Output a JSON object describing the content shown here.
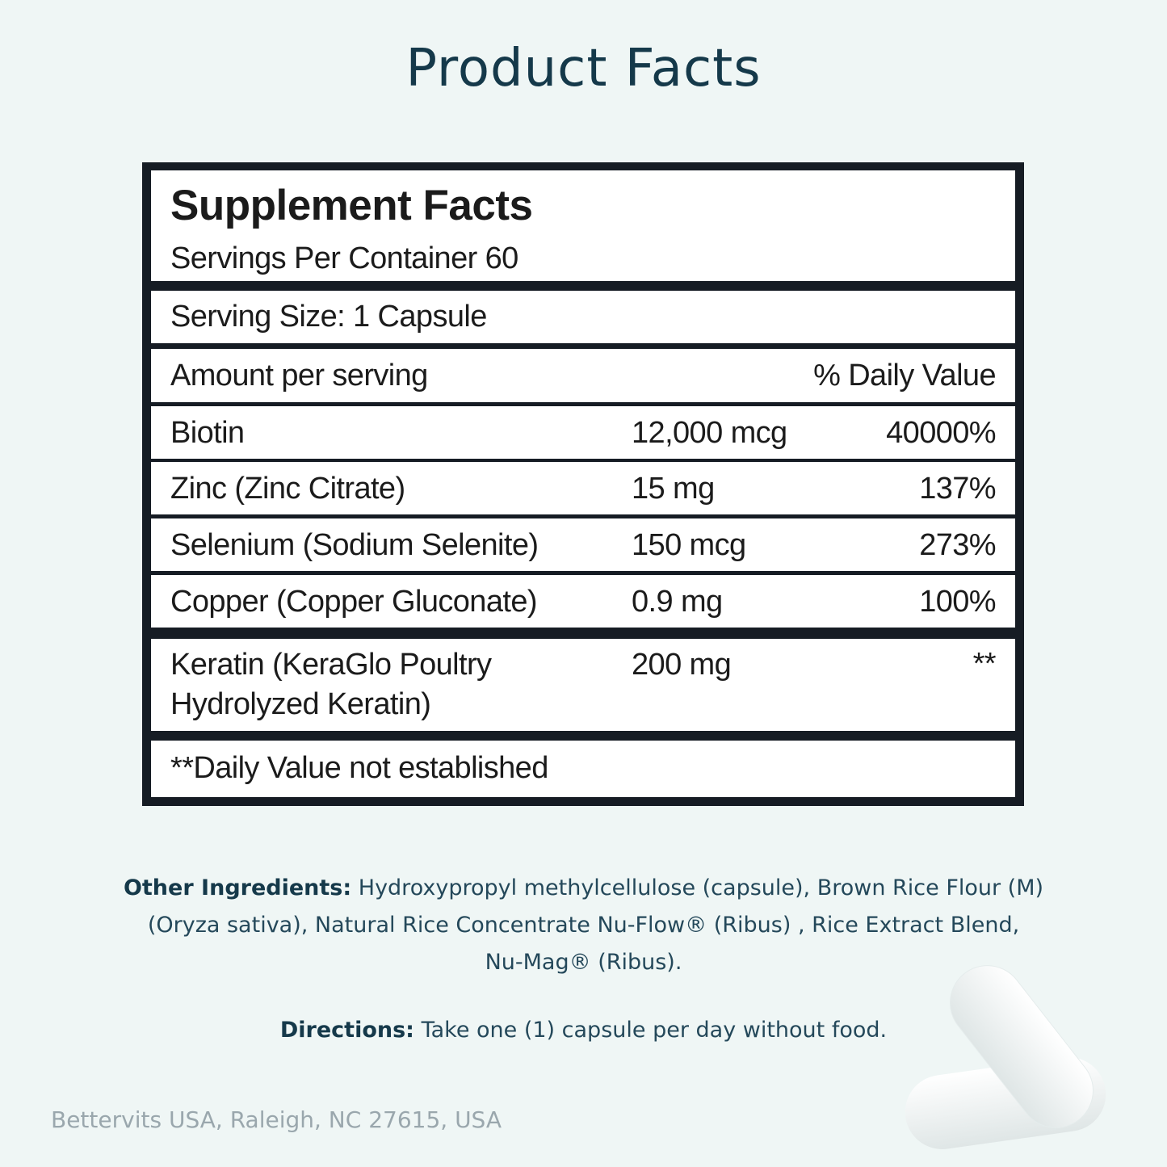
{
  "title": "Product Facts",
  "facts": {
    "heading": "Supplement Facts",
    "servings": "Servings Per Container 60",
    "serving_size": "Serving Size: 1 Capsule",
    "header": {
      "amount": "Amount per serving",
      "dv": "% Daily Value"
    },
    "rows": [
      [
        "Biotin",
        "12,000 mcg",
        "40000%"
      ],
      [
        "Zinc (Zinc Citrate)",
        "15 mg",
        "137%"
      ],
      [
        "Selenium (Sodium Selenite)",
        "150 mcg",
        "273%"
      ],
      [
        "Copper (Copper Gluconate)",
        "0.9 mg",
        "100%"
      ]
    ],
    "keratin": {
      "name_lines": [
        "Keratin (KeraGlo Poultry",
        "Hydrolyzed Keratin)"
      ],
      "amount": "200 mg",
      "dv": "**"
    },
    "footnote": "**Daily Value not established"
  },
  "other_ingredients": {
    "label": "Other Ingredients:",
    "lines": [
      "Hydroxypropyl methylcellulose (capsule), Brown Rice Flour (M)",
      "(Oryza sativa), Natural Rice Concentrate Nu-Flow® (Ribus) , Rice Extract Blend,",
      "Nu-Mag® (Ribus)."
    ]
  },
  "directions": {
    "label": "Directions:",
    "text": "Take one (1) capsule per day without food."
  },
  "address": "Bettervits USA, Raleigh, NC 27615, USA"
}
